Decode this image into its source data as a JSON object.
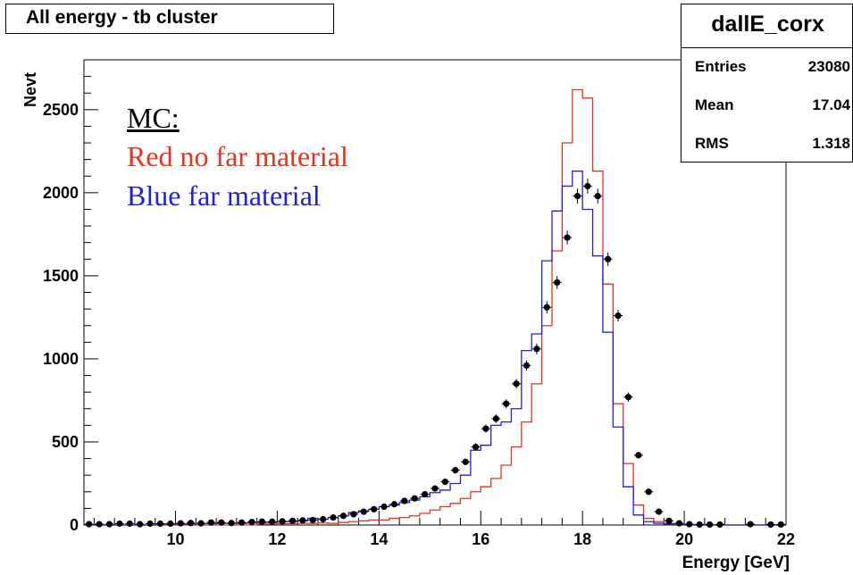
{
  "chart_data": {
    "type": "histogram",
    "title": "All energy - tb cluster",
    "xlabel": "Energy [GeV]",
    "ylabel": "Nevt",
    "xlim": [
      8.2,
      22
    ],
    "ylim": [
      0,
      2800
    ],
    "x_ticks": [
      10,
      12,
      14,
      16,
      18,
      20,
      22
    ],
    "x_tick_labels": [
      "10",
      "12",
      "14",
      "16",
      "18",
      "20",
      "22"
    ],
    "y_ticks": [
      0,
      500,
      1000,
      1500,
      2000,
      2500
    ],
    "y_tick_labels": [
      "0",
      "500",
      "1000",
      "1500",
      "2000",
      "2500"
    ],
    "stats": {
      "name": "dallE_corx",
      "rows": [
        {
          "label": "Entries",
          "value": "23080"
        },
        {
          "label": "Mean",
          "value": "17.04"
        },
        {
          "label": "RMS",
          "value": "1.318"
        }
      ]
    },
    "annotations": {
      "heading": "MC:",
      "red_label": "Red no far material",
      "blue_label": "Blue far material"
    },
    "bin_width": 0.2,
    "series": [
      {
        "color": "#e8321e",
        "style": "step",
        "bins": [
          [
            8.2,
            0
          ],
          [
            8.4,
            0
          ],
          [
            8.6,
            0
          ],
          [
            8.8,
            0
          ],
          [
            9.0,
            0
          ],
          [
            9.2,
            0
          ],
          [
            9.4,
            0
          ],
          [
            9.6,
            0
          ],
          [
            9.8,
            0
          ],
          [
            10.0,
            0
          ],
          [
            10.2,
            0
          ],
          [
            10.4,
            0
          ],
          [
            10.6,
            0
          ],
          [
            10.8,
            0
          ],
          [
            11.0,
            0
          ],
          [
            11.2,
            0
          ],
          [
            11.4,
            0
          ],
          [
            11.6,
            5
          ],
          [
            11.8,
            5
          ],
          [
            12.0,
            8
          ],
          [
            12.2,
            8
          ],
          [
            12.4,
            10
          ],
          [
            12.6,
            10
          ],
          [
            12.8,
            12
          ],
          [
            13.0,
            10
          ],
          [
            13.2,
            15
          ],
          [
            13.4,
            20
          ],
          [
            13.6,
            25
          ],
          [
            13.8,
            30
          ],
          [
            14.0,
            30
          ],
          [
            14.2,
            40
          ],
          [
            14.4,
            45
          ],
          [
            14.6,
            55
          ],
          [
            14.8,
            70
          ],
          [
            15.0,
            90
          ],
          [
            15.2,
            110
          ],
          [
            15.4,
            130
          ],
          [
            15.6,
            160
          ],
          [
            15.8,
            200
          ],
          [
            16.0,
            230
          ],
          [
            16.2,
            280
          ],
          [
            16.4,
            360
          ],
          [
            16.6,
            470
          ],
          [
            16.8,
            620
          ],
          [
            17.0,
            850
          ],
          [
            17.2,
            1200
          ],
          [
            17.4,
            1650
          ],
          [
            17.6,
            2300
          ],
          [
            17.8,
            2620
          ],
          [
            18.0,
            2570
          ],
          [
            18.2,
            2130
          ],
          [
            18.4,
            1450
          ],
          [
            18.6,
            730
          ],
          [
            18.8,
            370
          ],
          [
            19.0,
            120
          ],
          [
            19.2,
            40
          ],
          [
            19.4,
            20
          ],
          [
            19.6,
            10
          ],
          [
            19.8,
            5
          ],
          [
            20.0,
            3
          ],
          [
            20.2,
            0
          ],
          [
            20.4,
            0
          ],
          [
            20.6,
            0
          ],
          [
            20.8,
            0
          ],
          [
            21.0,
            0
          ],
          [
            21.2,
            0
          ],
          [
            21.4,
            0
          ],
          [
            21.6,
            0
          ],
          [
            21.8,
            0
          ]
        ]
      },
      {
        "color": "#1f1fd6",
        "style": "step",
        "bins": [
          [
            8.2,
            0
          ],
          [
            8.4,
            0
          ],
          [
            8.6,
            0
          ],
          [
            8.8,
            0
          ],
          [
            9.0,
            0
          ],
          [
            9.2,
            0
          ],
          [
            9.4,
            0
          ],
          [
            9.6,
            5
          ],
          [
            9.8,
            5
          ],
          [
            10.0,
            5
          ],
          [
            10.2,
            5
          ],
          [
            10.4,
            8
          ],
          [
            10.6,
            8
          ],
          [
            10.8,
            10
          ],
          [
            11.0,
            10
          ],
          [
            11.2,
            10
          ],
          [
            11.4,
            12
          ],
          [
            11.6,
            15
          ],
          [
            11.8,
            15
          ],
          [
            12.0,
            20
          ],
          [
            12.2,
            20
          ],
          [
            12.4,
            25
          ],
          [
            12.6,
            40
          ],
          [
            12.8,
            35
          ],
          [
            13.0,
            45
          ],
          [
            13.2,
            55
          ],
          [
            13.4,
            75
          ],
          [
            13.6,
            85
          ],
          [
            13.8,
            95
          ],
          [
            14.0,
            110
          ],
          [
            14.2,
            120
          ],
          [
            14.4,
            135
          ],
          [
            14.6,
            150
          ],
          [
            14.8,
            170
          ],
          [
            15.0,
            195
          ],
          [
            15.2,
            210
          ],
          [
            15.4,
            250
          ],
          [
            15.6,
            300
          ],
          [
            15.8,
            450
          ],
          [
            16.0,
            480
          ],
          [
            16.2,
            600
          ],
          [
            16.4,
            620
          ],
          [
            16.6,
            700
          ],
          [
            16.8,
            1050
          ],
          [
            17.0,
            1150
          ],
          [
            17.2,
            1590
          ],
          [
            17.4,
            1890
          ],
          [
            17.6,
            2040
          ],
          [
            17.8,
            2130
          ],
          [
            18.0,
            1900
          ],
          [
            18.2,
            1620
          ],
          [
            18.4,
            1160
          ],
          [
            18.6,
            590
          ],
          [
            18.8,
            230
          ],
          [
            19.0,
            60
          ],
          [
            19.2,
            20
          ],
          [
            19.4,
            10
          ],
          [
            19.6,
            5
          ],
          [
            19.8,
            3
          ],
          [
            20.0,
            0
          ],
          [
            20.2,
            0
          ],
          [
            20.4,
            0
          ],
          [
            20.6,
            0
          ],
          [
            20.8,
            0
          ],
          [
            21.0,
            0
          ],
          [
            21.2,
            0
          ],
          [
            21.4,
            0
          ],
          [
            21.6,
            0
          ],
          [
            21.8,
            0
          ]
        ]
      },
      {
        "color": "#000000",
        "style": "points",
        "points": [
          [
            8.3,
            5
          ],
          [
            8.5,
            5
          ],
          [
            8.7,
            5
          ],
          [
            8.9,
            8
          ],
          [
            9.1,
            8
          ],
          [
            9.3,
            5
          ],
          [
            9.5,
            8
          ],
          [
            9.7,
            8
          ],
          [
            9.9,
            8
          ],
          [
            10.1,
            10
          ],
          [
            10.3,
            12
          ],
          [
            10.5,
            10
          ],
          [
            10.7,
            15
          ],
          [
            10.9,
            15
          ],
          [
            11.1,
            12
          ],
          [
            11.3,
            15
          ],
          [
            11.5,
            18
          ],
          [
            11.7,
            20
          ],
          [
            11.9,
            20
          ],
          [
            12.1,
            22
          ],
          [
            12.3,
            25
          ],
          [
            12.5,
            28
          ],
          [
            12.7,
            30
          ],
          [
            12.9,
            35
          ],
          [
            13.1,
            45
          ],
          [
            13.3,
            55
          ],
          [
            13.5,
            65
          ],
          [
            13.7,
            80
          ],
          [
            13.9,
            95
          ],
          [
            14.1,
            110
          ],
          [
            14.3,
            125
          ],
          [
            14.5,
            145
          ],
          [
            14.7,
            160
          ],
          [
            14.9,
            185
          ],
          [
            15.1,
            220
          ],
          [
            15.3,
            260
          ],
          [
            15.5,
            330
          ],
          [
            15.7,
            380
          ],
          [
            15.9,
            470
          ],
          [
            16.1,
            580
          ],
          [
            16.3,
            640
          ],
          [
            16.5,
            730
          ],
          [
            16.7,
            850
          ],
          [
            16.9,
            960
          ],
          [
            17.1,
            1060
          ],
          [
            17.3,
            1310
          ],
          [
            17.5,
            1460
          ],
          [
            17.7,
            1730
          ],
          [
            17.9,
            1980
          ],
          [
            18.1,
            2040
          ],
          [
            18.3,
            1980
          ],
          [
            18.5,
            1600
          ],
          [
            18.7,
            1260
          ],
          [
            18.9,
            770
          ],
          [
            19.1,
            420
          ],
          [
            19.3,
            200
          ],
          [
            19.5,
            80
          ],
          [
            19.7,
            25
          ],
          [
            19.9,
            10
          ],
          [
            20.1,
            5
          ],
          [
            20.3,
            3
          ],
          [
            20.5,
            3
          ],
          [
            20.7,
            3
          ],
          [
            21.3,
            5
          ],
          [
            21.7,
            3
          ],
          [
            21.9,
            3
          ]
        ]
      }
    ]
  }
}
